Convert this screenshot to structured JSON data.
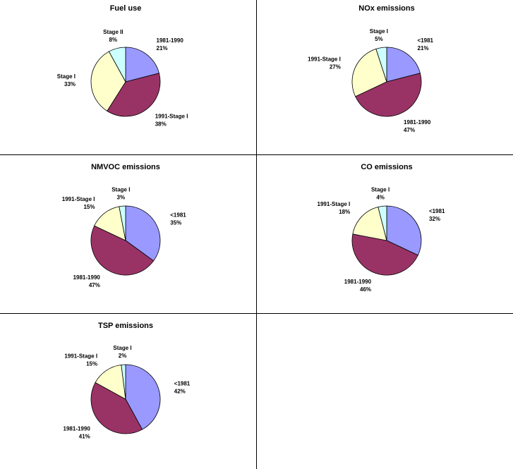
{
  "chart_data": [
    {
      "type": "pie",
      "title": "Fuel use",
      "categories": [
        "1981-1990",
        "1991-Stage I",
        "Stage I",
        "Stage II"
      ],
      "values": [
        21,
        38,
        33,
        8
      ],
      "value_labels": [
        "21%",
        "38%",
        "33%",
        "8%"
      ],
      "colors": [
        "#9999ff",
        "#993366",
        "#ffffcc",
        "#ccffff"
      ]
    },
    {
      "type": "pie",
      "title": "NOx emissions",
      "categories": [
        "<1981",
        "1981-1990",
        "1991-Stage I",
        "Stage I"
      ],
      "values": [
        21,
        47,
        27,
        5
      ],
      "value_labels": [
        "21%",
        "47%",
        "27%",
        "5%"
      ],
      "colors": [
        "#9999ff",
        "#993366",
        "#ffffcc",
        "#ccffff"
      ]
    },
    {
      "type": "pie",
      "title": "NMVOC emissions",
      "categories": [
        "<1981",
        "1981-1990",
        "1991-Stage I",
        "Stage I"
      ],
      "values": [
        35,
        47,
        15,
        3
      ],
      "value_labels": [
        "35%",
        "47%",
        "15%",
        "3%"
      ],
      "colors": [
        "#9999ff",
        "#993366",
        "#ffffcc",
        "#ccffff"
      ]
    },
    {
      "type": "pie",
      "title": "CO emissions",
      "categories": [
        "<1981",
        "1981-1990",
        "1991-Stage I",
        "Stage I"
      ],
      "values": [
        32,
        46,
        18,
        4
      ],
      "value_labels": [
        "32%",
        "46%",
        "18%",
        "4%"
      ],
      "colors": [
        "#9999ff",
        "#993366",
        "#ffffcc",
        "#ccffff"
      ]
    },
    {
      "type": "pie",
      "title": "TSP emissions",
      "categories": [
        "<1981",
        "1981-1990",
        "1991-Stage I",
        "Stage I"
      ],
      "values": [
        42,
        41,
        15,
        2
      ],
      "value_labels": [
        "42%",
        "41%",
        "15%",
        "2%"
      ],
      "colors": [
        "#9999ff",
        "#993366",
        "#ffffcc",
        "#ccffff"
      ]
    }
  ]
}
